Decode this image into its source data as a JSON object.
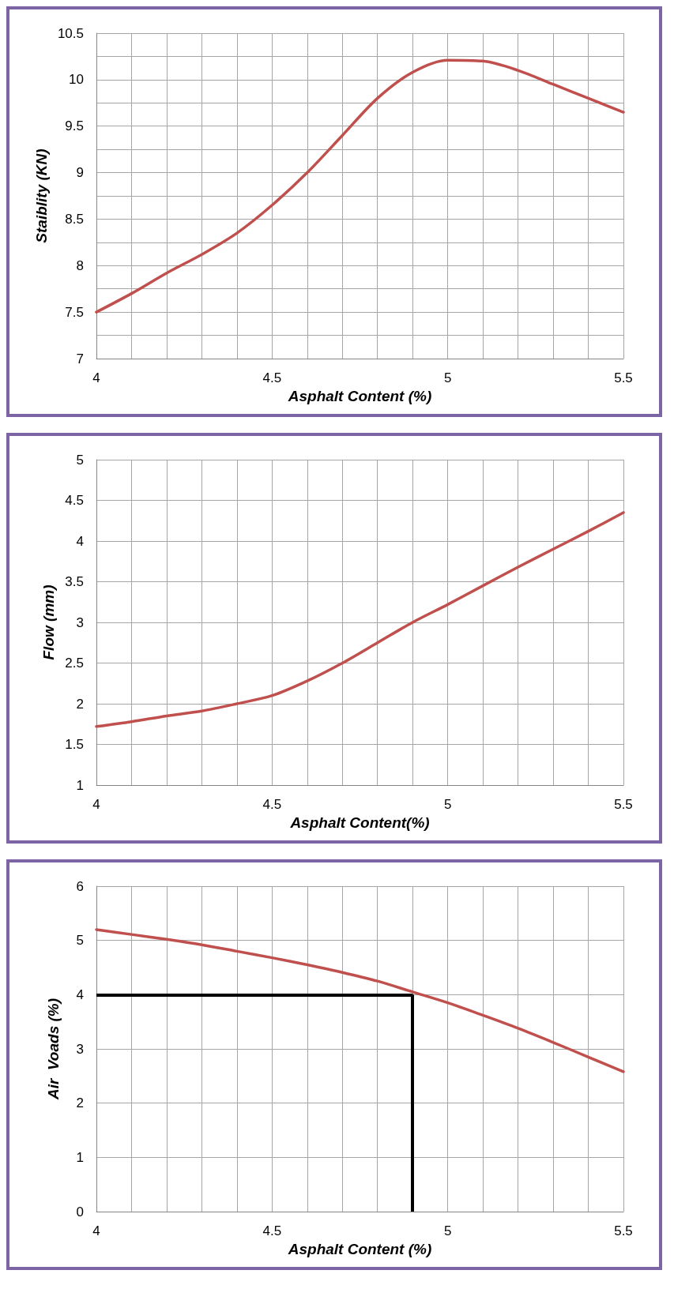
{
  "chart_data": [
    {
      "type": "line",
      "xlabel": "Asphalt Content (%)",
      "ylabel": "Staiblity (KN)",
      "grid": true,
      "marker": "none",
      "line_style": "solid",
      "xlim": [
        4,
        5.5
      ],
      "ylim": [
        7,
        10.5
      ],
      "xticks": [
        4,
        {
          "value": 4.1,
          "label": null
        },
        {
          "value": 4.2,
          "label": null
        },
        {
          "value": 4.3,
          "label": null
        },
        {
          "value": 4.4,
          "label": null
        },
        4.5,
        {
          "value": 4.6,
          "label": null
        },
        {
          "value": 4.7,
          "label": null
        },
        {
          "value": 4.8,
          "label": null
        },
        {
          "value": 4.9,
          "label": null
        },
        5,
        {
          "value": 5.1,
          "label": null
        },
        {
          "value": 5.2,
          "label": null
        },
        {
          "value": 5.3,
          "label": null
        },
        {
          "value": 5.4,
          "label": null
        },
        5.5
      ],
      "yticks": [
        7,
        {
          "value": 7.25,
          "label": null
        },
        7.5,
        {
          "value": 7.75,
          "label": null
        },
        8,
        {
          "value": 8.25,
          "label": null
        },
        8.5,
        {
          "value": 8.75,
          "label": null
        },
        9,
        {
          "value": 9.25,
          "label": null
        },
        9.5,
        {
          "value": 9.75,
          "label": null
        },
        10,
        {
          "value": 10.25,
          "label": null
        },
        10.5
      ],
      "x": [
        4,
        4.1,
        4.2,
        4.3,
        4.4,
        4.5,
        4.6,
        4.7,
        4.8,
        4.9,
        5,
        5.1,
        5.2,
        5.3,
        5.4,
        5.5
      ],
      "series": [
        {
          "color": "#c0504d",
          "values": [
            7.5,
            7.7,
            7.92,
            8.12,
            8.35,
            8.65,
            9.0,
            9.4,
            9.8,
            10.08,
            10.21,
            10.2,
            10.1,
            9.95,
            9.8,
            9.65
          ]
        }
      ]
    },
    {
      "type": "line",
      "xlabel": "Asphalt Content(%)",
      "ylabel": "Flow (mm)",
      "grid": true,
      "marker": "none",
      "line_style": "solid",
      "xlim": [
        4,
        5.5
      ],
      "ylim": [
        1,
        5
      ],
      "xticks": [
        4,
        {
          "value": 4.1,
          "label": null
        },
        {
          "value": 4.2,
          "label": null
        },
        {
          "value": 4.3,
          "label": null
        },
        {
          "value": 4.4,
          "label": null
        },
        4.5,
        {
          "value": 4.6,
          "label": null
        },
        {
          "value": 4.7,
          "label": null
        },
        {
          "value": 4.8,
          "label": null
        },
        {
          "value": 4.9,
          "label": null
        },
        5,
        {
          "value": 5.1,
          "label": null
        },
        {
          "value": 5.2,
          "label": null
        },
        {
          "value": 5.3,
          "label": null
        },
        {
          "value": 5.4,
          "label": null
        },
        5.5
      ],
      "yticks": [
        1,
        1.5,
        2,
        2.5,
        3,
        3.5,
        4,
        4.5,
        5
      ],
      "x": [
        4,
        4.1,
        4.2,
        4.3,
        4.4,
        4.5,
        4.6,
        4.7,
        4.8,
        4.9,
        5,
        5.1,
        5.2,
        5.3,
        5.4,
        5.5
      ],
      "series": [
        {
          "color": "#c0504d",
          "values": [
            1.72,
            1.78,
            1.85,
            1.91,
            2.0,
            2.1,
            2.28,
            2.5,
            2.75,
            3.0,
            3.22,
            3.45,
            3.68,
            3.9,
            4.12,
            4.35
          ]
        }
      ]
    },
    {
      "type": "line",
      "xlabel": "Asphalt Content (%)",
      "ylabel": "Air  Voads (%)",
      "grid": true,
      "marker": "none",
      "line_style": "solid",
      "xlim": [
        4,
        5.5
      ],
      "ylim": [
        0,
        6
      ],
      "xticks": [
        4,
        {
          "value": 4.1,
          "label": null
        },
        {
          "value": 4.2,
          "label": null
        },
        {
          "value": 4.3,
          "label": null
        },
        {
          "value": 4.4,
          "label": null
        },
        4.5,
        {
          "value": 4.6,
          "label": null
        },
        {
          "value": 4.7,
          "label": null
        },
        {
          "value": 4.8,
          "label": null
        },
        {
          "value": 4.9,
          "label": null
        },
        5,
        {
          "value": 5.1,
          "label": null
        },
        {
          "value": 5.2,
          "label": null
        },
        {
          "value": 5.3,
          "label": null
        },
        {
          "value": 5.4,
          "label": null
        },
        5.5
      ],
      "yticks": [
        0,
        1,
        2,
        3,
        4,
        5,
        6
      ],
      "x": [
        4,
        4.1,
        4.2,
        4.3,
        4.4,
        4.5,
        4.6,
        4.7,
        4.8,
        4.9,
        5,
        5.1,
        5.2,
        5.3,
        5.4,
        5.5
      ],
      "series": [
        {
          "color": "#c0504d",
          "values": [
            5.2,
            5.11,
            5.02,
            4.92,
            4.8,
            4.68,
            4.55,
            4.41,
            4.25,
            4.05,
            3.85,
            3.62,
            3.38,
            3.12,
            2.85,
            2.58
          ]
        }
      ],
      "ref_lines": [
        {
          "axis": "y",
          "value": 4,
          "color": "#000000"
        },
        {
          "axis": "x",
          "value": 4.9,
          "color": "#000000"
        }
      ]
    }
  ]
}
